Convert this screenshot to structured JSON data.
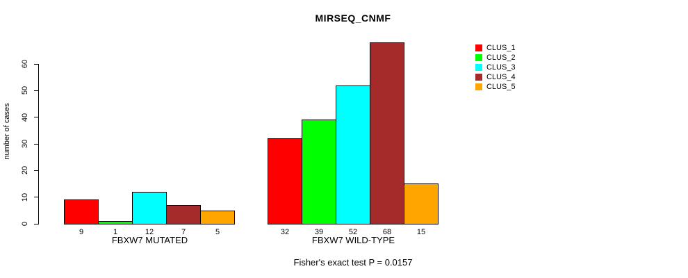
{
  "title": "MIRSEQ_CNMF",
  "caption": "Fisher's exact test P = 0.0157",
  "chart_data": {
    "type": "bar",
    "title": "MIRSEQ_CNMF",
    "ylabel": "number of cases",
    "xlabel": "",
    "groups": [
      "FBXW7 MUTATED",
      "FBXW7 WILD-TYPE"
    ],
    "series": [
      {
        "name": "CLUS_1",
        "color": "#FF0000",
        "values": [
          9,
          32
        ]
      },
      {
        "name": "CLUS_2",
        "color": "#00FF00",
        "values": [
          1,
          39
        ]
      },
      {
        "name": "CLUS_3",
        "color": "#00FFFF",
        "values": [
          12,
          52
        ]
      },
      {
        "name": "CLUS_4",
        "color": "#A52A2A",
        "values": [
          7,
          68
        ]
      },
      {
        "name": "CLUS_5",
        "color": "#FFA500",
        "values": [
          5,
          15
        ]
      }
    ],
    "bar_value_labels": true,
    "yticks": [
      0,
      10,
      20,
      30,
      40,
      50,
      60
    ],
    "ylim": [
      0,
      69
    ],
    "grid": false,
    "legend_position": "top-right",
    "annotation": "Fisher's exact test P = 0.0157"
  }
}
